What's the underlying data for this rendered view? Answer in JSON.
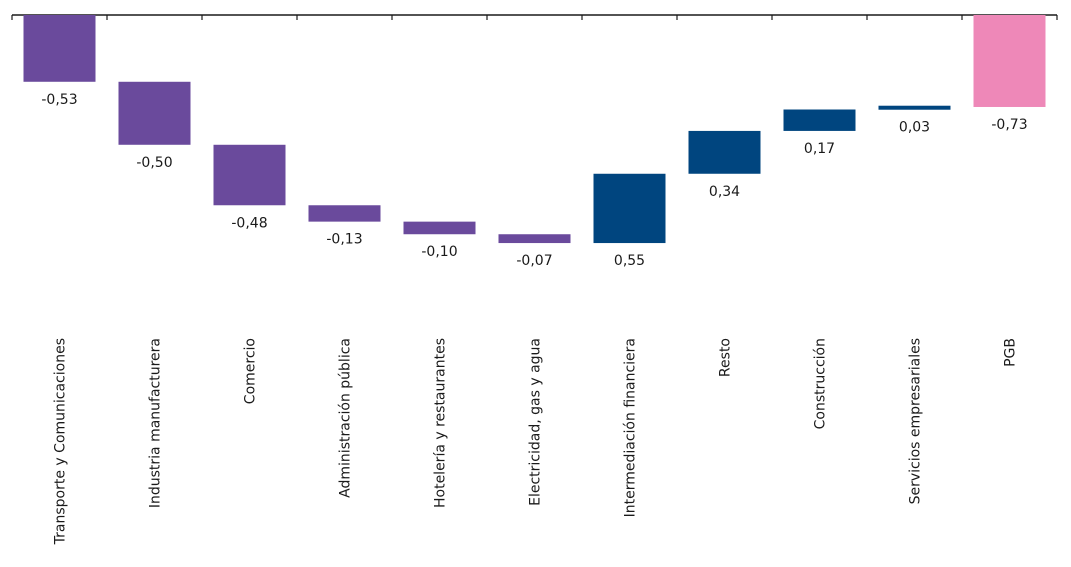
{
  "chart_data": {
    "type": "bar",
    "subtype": "waterfall",
    "categories": [
      "Transporte y Comunicaciones",
      "Industria manufacturera",
      "Comercio",
      "Administración pública",
      "Hotelería y restaurantes",
      "Electricidad, gas y agua",
      "Intermediación financiera",
      "Resto",
      "Construcción",
      "Servicios empresariales",
      "PGB"
    ],
    "values": [
      -0.53,
      -0.5,
      -0.48,
      -0.13,
      -0.1,
      -0.07,
      0.55,
      0.34,
      0.17,
      0.03,
      -0.73
    ],
    "value_labels": [
      "-0,53",
      "-0,50",
      "-0,48",
      "-0,13",
      "-0,10",
      "-0,07",
      "0,55",
      "0,34",
      "0,17",
      "0,03",
      "-0,73"
    ],
    "total_index": 10,
    "title": "",
    "xlabel": "",
    "ylabel": "",
    "ylim": [
      -1.31,
      0
    ],
    "grid": false,
    "legend": "none",
    "colors": {
      "negative": "#6a4a9c",
      "positive": "#00457f",
      "total": "#ee88b8",
      "axis": "#1a1a1a",
      "text": "#1a1a1a"
    }
  }
}
